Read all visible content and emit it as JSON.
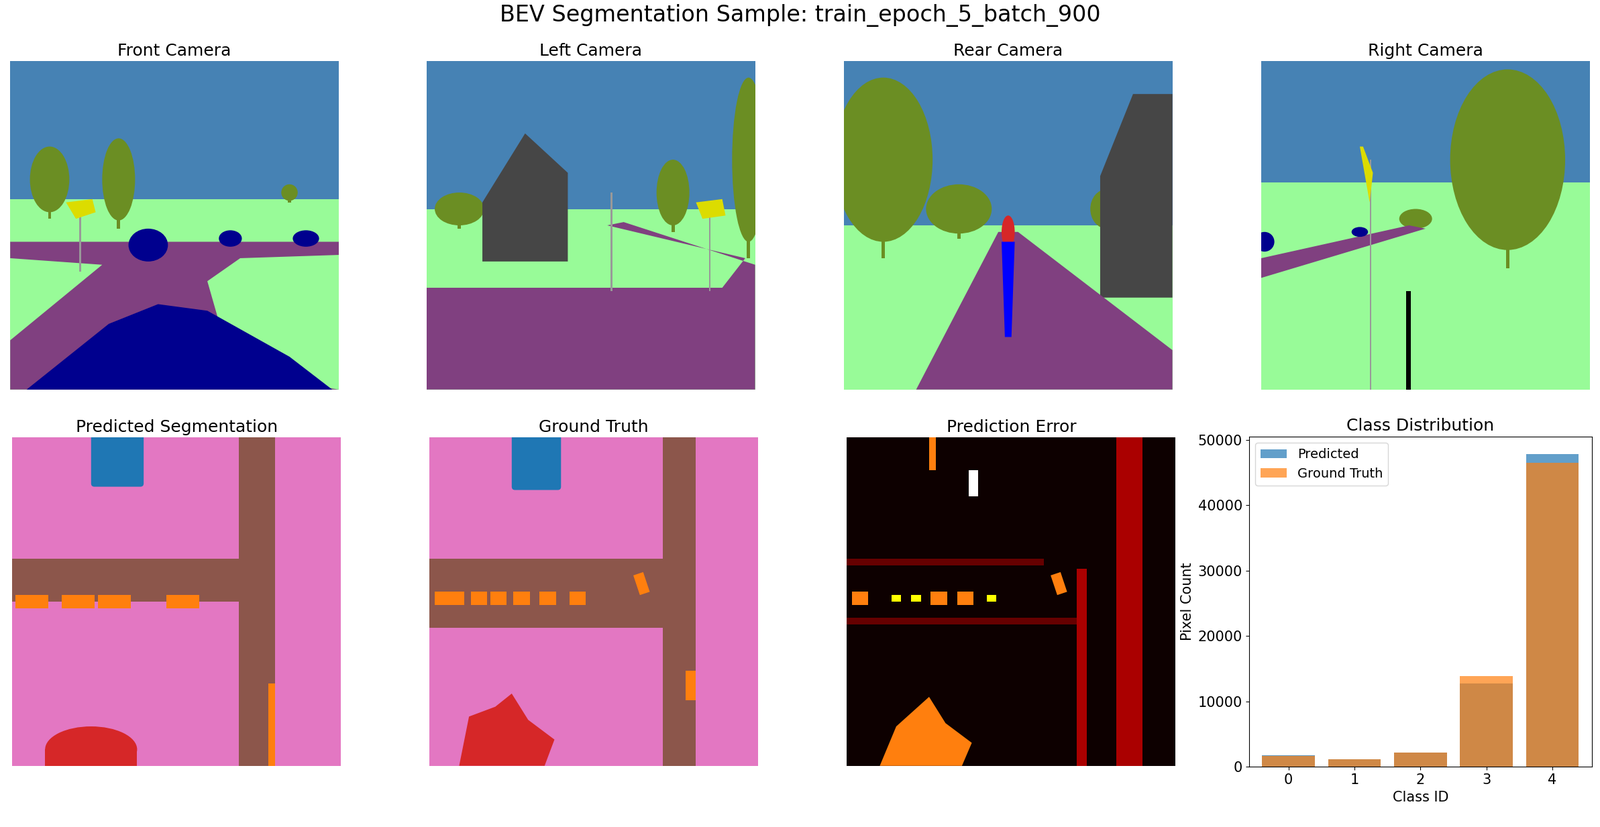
{
  "figure": {
    "title": "BEV Segmentation Sample: train_epoch_5_batch_900",
    "image_panels": [
      {
        "title": "Front Camera"
      },
      {
        "title": "Left Camera"
      },
      {
        "title": "Rear Camera"
      },
      {
        "title": "Right Camera"
      },
      {
        "title": "Predicted Segmentation"
      },
      {
        "title": "Ground Truth"
      },
      {
        "title": "Prediction Error"
      }
    ]
  },
  "chart_data": {
    "type": "bar",
    "title": "Class Distribution",
    "x": [
      0,
      1,
      2,
      3,
      4
    ],
    "x_label": "Class ID",
    "y_label": "Pixel Count",
    "series": [
      {
        "name": "Predicted",
        "color": "#1f77b4",
        "values": [
          1800,
          1200,
          2200,
          12700,
          47800
        ]
      },
      {
        "name": "Ground Truth",
        "color": "#ff7f0e",
        "values": [
          1700,
          1200,
          2200,
          13900,
          46500
        ]
      }
    ],
    "xlim": [
      -0.6,
      4.6
    ],
    "xticks": [
      0,
      1,
      2,
      3,
      4
    ],
    "ylim": [
      0,
      50500
    ],
    "yticks": [
      0,
      10000,
      20000,
      30000,
      40000,
      50000
    ],
    "legend": "upper left",
    "grid": false
  }
}
